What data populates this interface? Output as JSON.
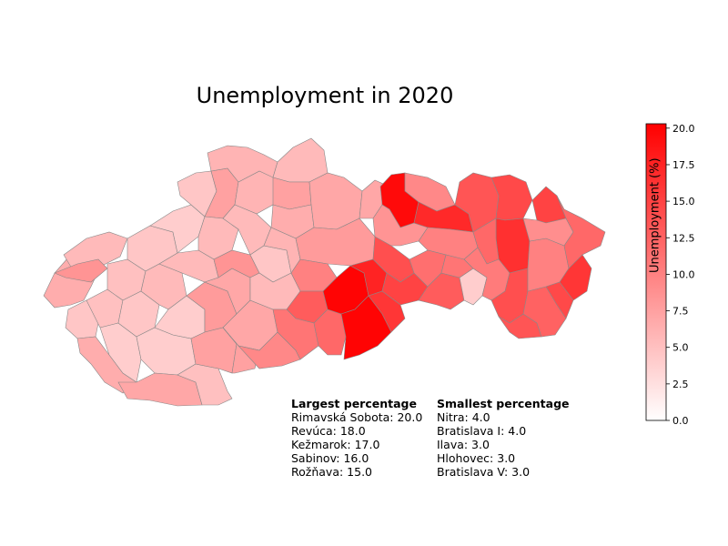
{
  "title": "Unemployment in 2020",
  "colorbar": {
    "label": "Unemployment (%)",
    "ticks": [
      "0.0",
      "2.5",
      "5.0",
      "7.5",
      "10.0",
      "12.5",
      "15.0",
      "17.5",
      "20.0"
    ],
    "min": 0,
    "max": 20.3,
    "color_low": "#ffffff",
    "color_high": "#ff0000"
  },
  "largest": {
    "heading": "Largest percentage",
    "items": [
      "Rimavská Sobota: 20.0",
      "Revúca: 18.0",
      "Kežmarok: 17.0",
      "Sabinov: 16.0",
      "Rožňava: 15.0"
    ]
  },
  "smallest": {
    "heading": "Smallest percentage",
    "items": [
      "Nitra: 4.0",
      "Bratislava I: 4.0",
      "Ilava: 3.0",
      "Hlohovec: 3.0",
      "Bratislava V: 3.0"
    ]
  },
  "colors": {
    "border": "#888888"
  },
  "chart_data": {
    "type": "choropleth",
    "title": "Unemployment in 2020",
    "colorbar_label": "Unemployment (%)",
    "range": [
      0,
      20.3
    ],
    "regions": [
      {
        "name": "Rimavská Sobota",
        "value": 20.0
      },
      {
        "name": "Revúca",
        "value": 18.0
      },
      {
        "name": "Kežmarok",
        "value": 17.0
      },
      {
        "name": "Sabinov",
        "value": 16.0
      },
      {
        "name": "Rožňava",
        "value": 15.0
      },
      {
        "name": "Nitra",
        "value": 4.0
      },
      {
        "name": "Bratislava I",
        "value": 4.0
      },
      {
        "name": "Ilava",
        "value": 3.0
      },
      {
        "name": "Hlohovec",
        "value": 3.0
      },
      {
        "name": "Bratislava V",
        "value": 3.0
      }
    ]
  }
}
